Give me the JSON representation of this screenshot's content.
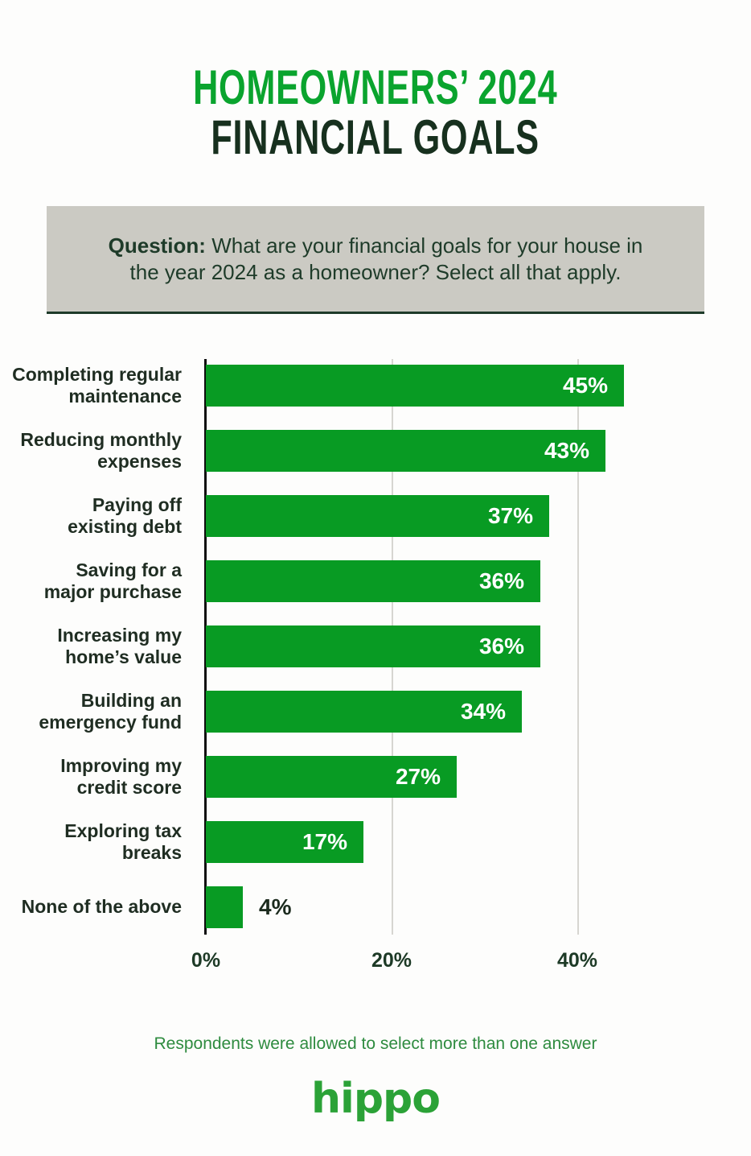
{
  "title": {
    "line1": "HOMEOWNERS’ 2024",
    "line2": "FINANCIAL GOALS",
    "line1_color": "#0aa42e",
    "line2_color": "#17301e"
  },
  "question": {
    "label": "Question:",
    "text": " What are your financial goals for your house in\nthe year 2024 as a homeowner? Select all that apply.",
    "bg_color": "#cbcac3",
    "text_color": "#1e3b29"
  },
  "chart_data": {
    "type": "bar",
    "orientation": "horizontal",
    "categories": [
      "Completing regular maintenance",
      "Reducing monthly expenses",
      "Paying off existing debt",
      "Saving for a major purchase",
      "Increasing my home’s value",
      "Building an emergency fund",
      "Improving my credit score",
      "Exploring tax breaks",
      "None of the above"
    ],
    "categories_display": [
      "Completing regular\nmaintenance",
      "Reducing monthly\nexpenses",
      "Paying off\nexisting debt",
      "Saving for a\nmajor purchase",
      "Increasing my\nhome’s value",
      "Building an\nemergency fund",
      "Improving my\ncredit score",
      "Exploring tax\nbreaks",
      "None of the above"
    ],
    "values": [
      45,
      43,
      37,
      36,
      36,
      34,
      27,
      17,
      4
    ],
    "value_labels": [
      "45%",
      "43%",
      "37%",
      "36%",
      "36%",
      "34%",
      "27%",
      "17%",
      "4%"
    ],
    "ticks": [
      {
        "label": "0%",
        "value": 0
      },
      {
        "label": "20%",
        "value": 20
      },
      {
        "label": "40%",
        "value": 40
      }
    ],
    "xlim": [
      0,
      48.5
    ],
    "grid": true,
    "bar_color": "#089b23",
    "value_inside_color": "#ffffff",
    "value_outside_color": "#1c2b1e",
    "axis_line_color": "#0d0d0d",
    "gridline_color": "#d7d6d1",
    "tick_label_color": "#1d3a26"
  },
  "footer": {
    "note": "Respondents were allowed to select more than one answer",
    "note_color": "#2e8b3f",
    "logo_text": "hippo",
    "logo_color": "#2ba237"
  }
}
